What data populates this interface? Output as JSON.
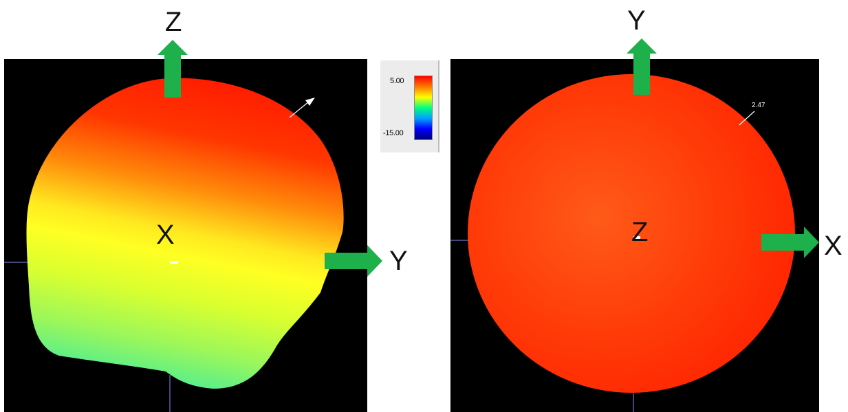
{
  "left_view": {
    "top_axis": "Z",
    "right_axis": "Y",
    "center_axis": "X"
  },
  "right_view": {
    "top_axis": "Y",
    "right_axis": "X",
    "center_axis": "Z",
    "marker_value": "2.47"
  },
  "colorbar": {
    "max_label": "5.00",
    "min_label": "-15.00",
    "colors": [
      "#ff0000",
      "#ff7a00",
      "#ffff00",
      "#00ff80",
      "#00a0ff",
      "#0000ff",
      "#000080"
    ]
  },
  "colors": {
    "arrow": "#1db04b",
    "background": "#000000",
    "surface_hot": "#ff2a00",
    "surface_warm": "#ff5a10",
    "surface_mid": "#ffff20",
    "surface_cool": "#5ef08a"
  }
}
